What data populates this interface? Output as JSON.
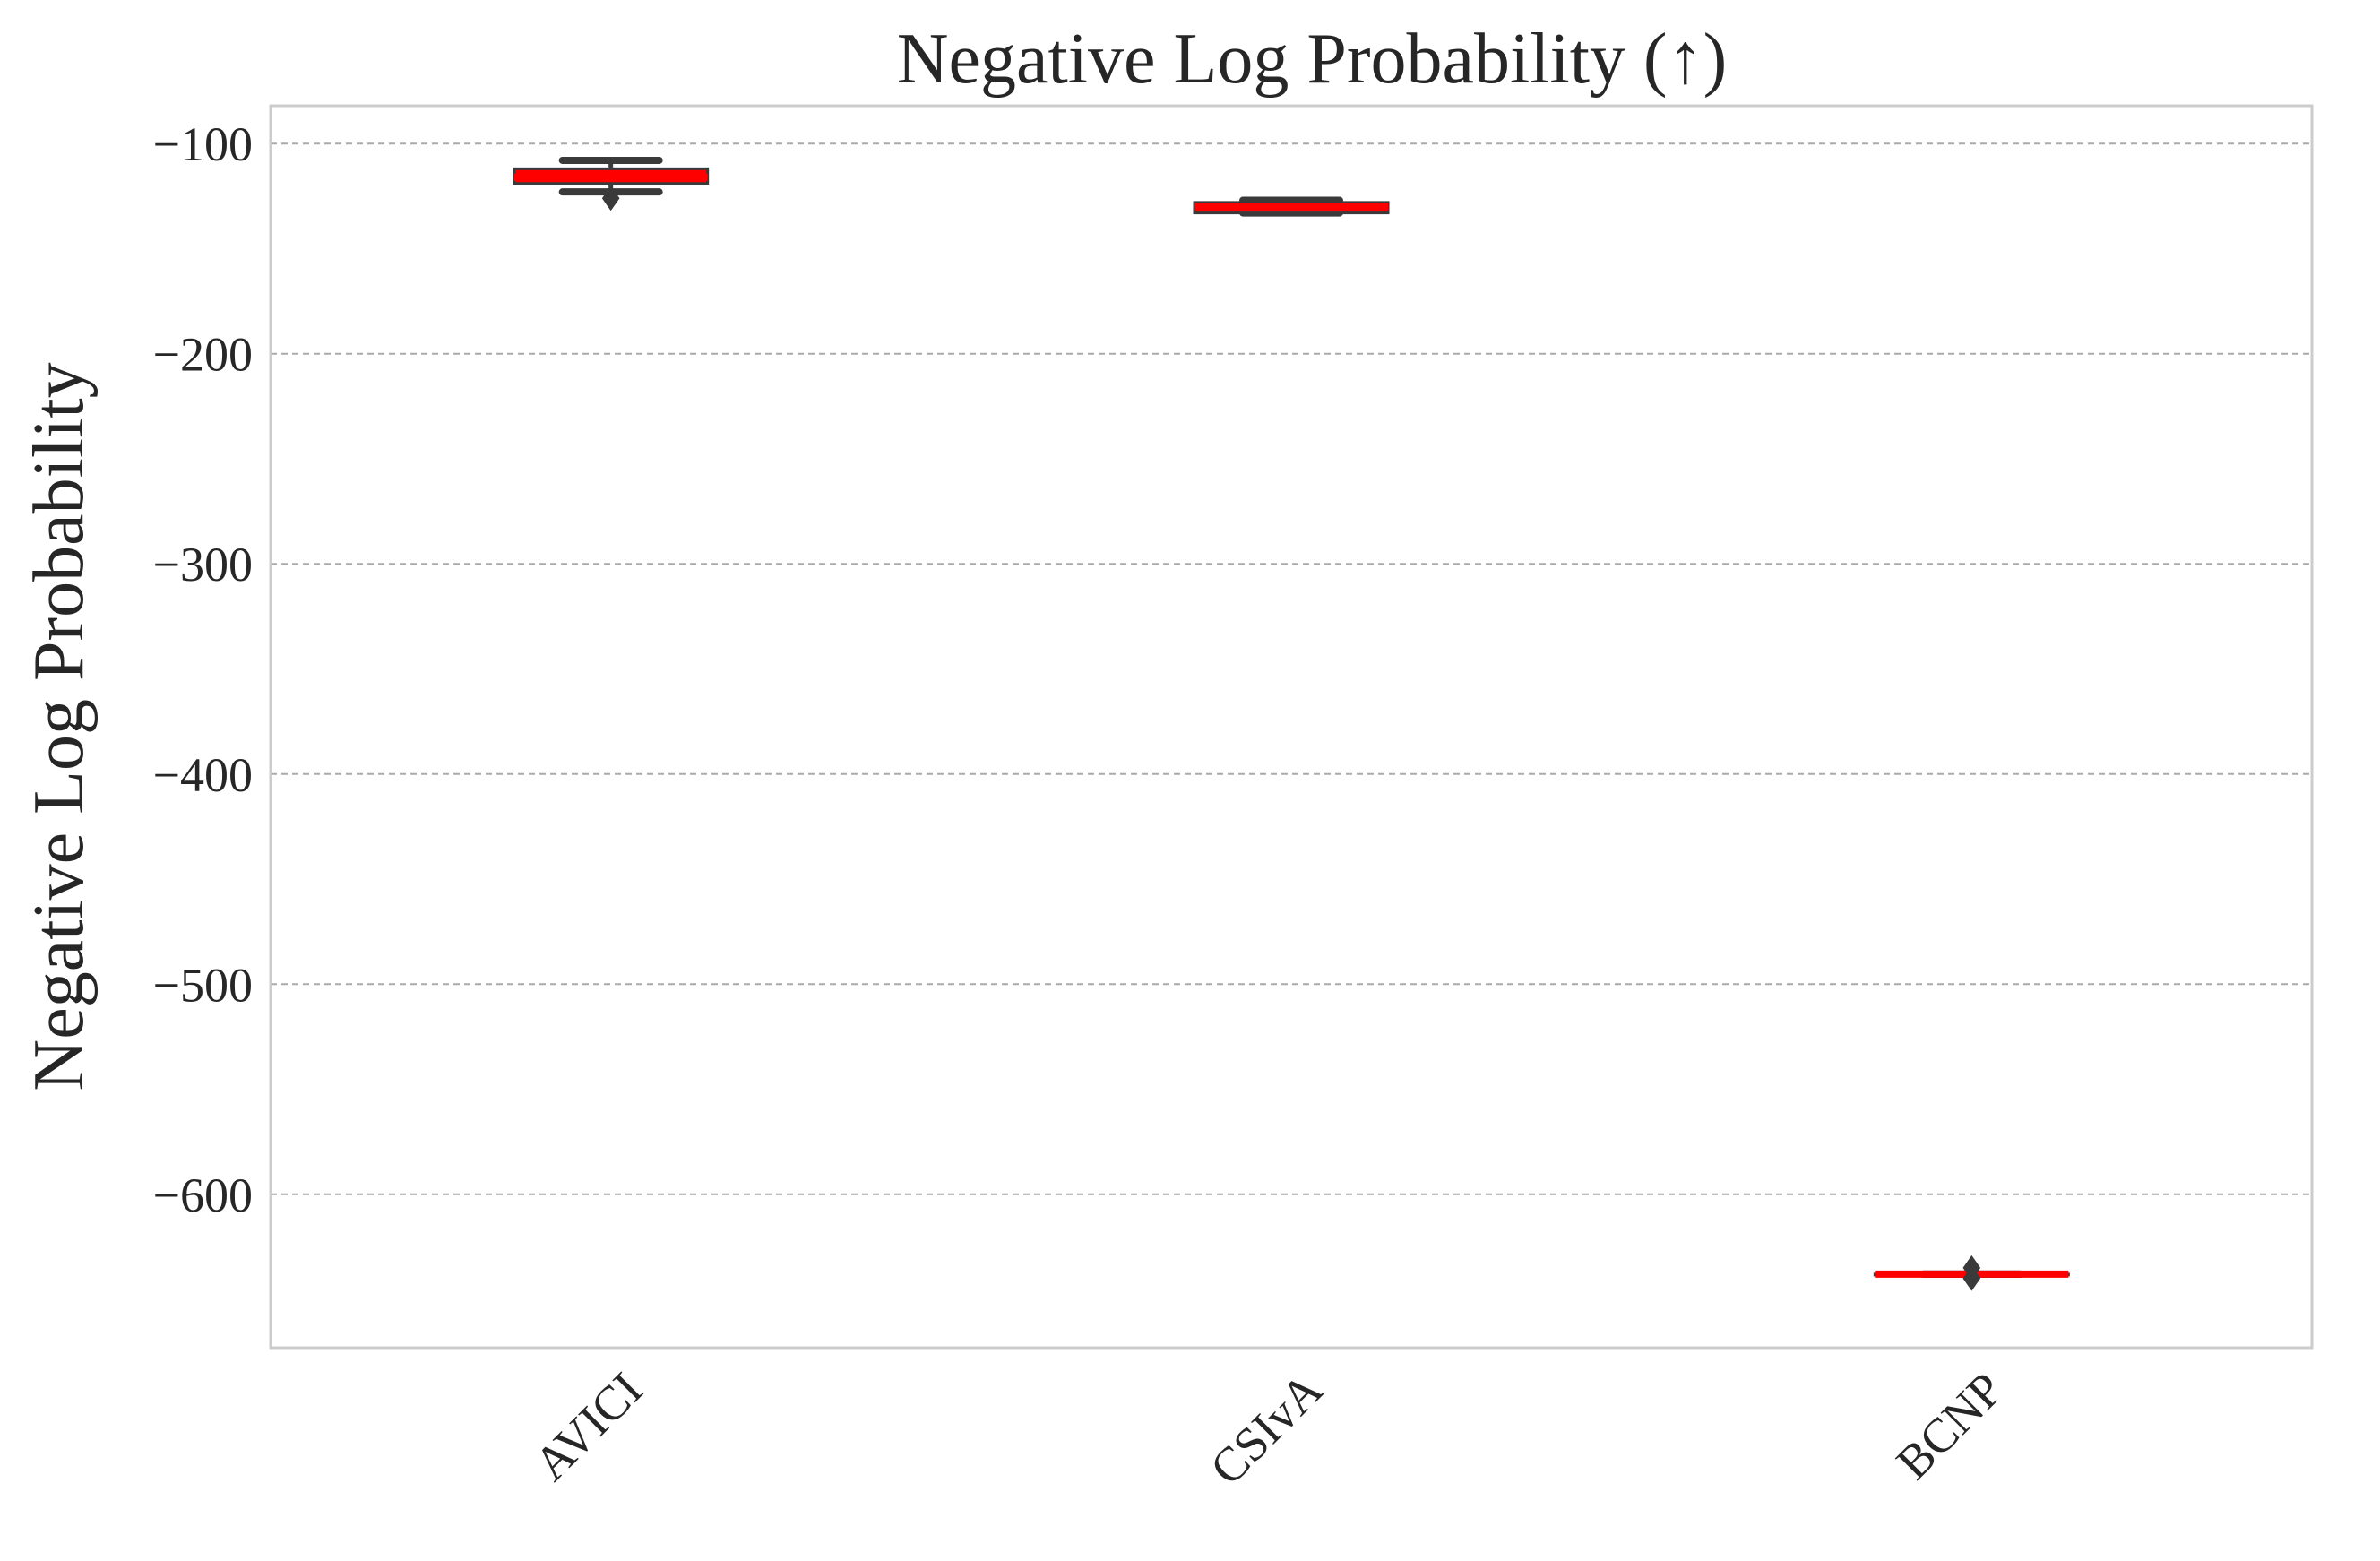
{
  "chart_data": {
    "type": "box",
    "title": "Negative Log Probability (↑)",
    "xlabel": "",
    "ylabel": "Negative Log Probability",
    "categories": [
      "AVICI",
      "CSIvA",
      "BCNP"
    ],
    "yticks": [
      -100,
      -200,
      -300,
      -400,
      -500,
      -600
    ],
    "ytick_labels": [
      "−100",
      "−200",
      "−300",
      "−400",
      "−500",
      "−600"
    ],
    "ylim": [
      -673,
      -82
    ],
    "grid": "horizontal dashed",
    "boxes": [
      {
        "category": "AVICI",
        "whisker_high": -108,
        "q3": -112,
        "median": -116,
        "q1": -119,
        "whisker_low": -123,
        "outliers": [
          -126
        ]
      },
      {
        "category": "CSIvA",
        "whisker_high": -127,
        "q3": -128,
        "median": -130,
        "q1": -133,
        "whisker_low": -133,
        "outliers": []
      },
      {
        "category": "BCNP",
        "whisker_high": -638,
        "q3": -638,
        "median": -638,
        "q1": -638,
        "whisker_low": -638,
        "outliers": [
          -635,
          -640
        ]
      }
    ],
    "colors": {
      "median": "#ff0000",
      "box_edge": "#3a3a3a",
      "whisker": "#3a3a3a",
      "grid": "#aaaaaa",
      "spine": "#cccccc",
      "text": "#262626"
    }
  }
}
